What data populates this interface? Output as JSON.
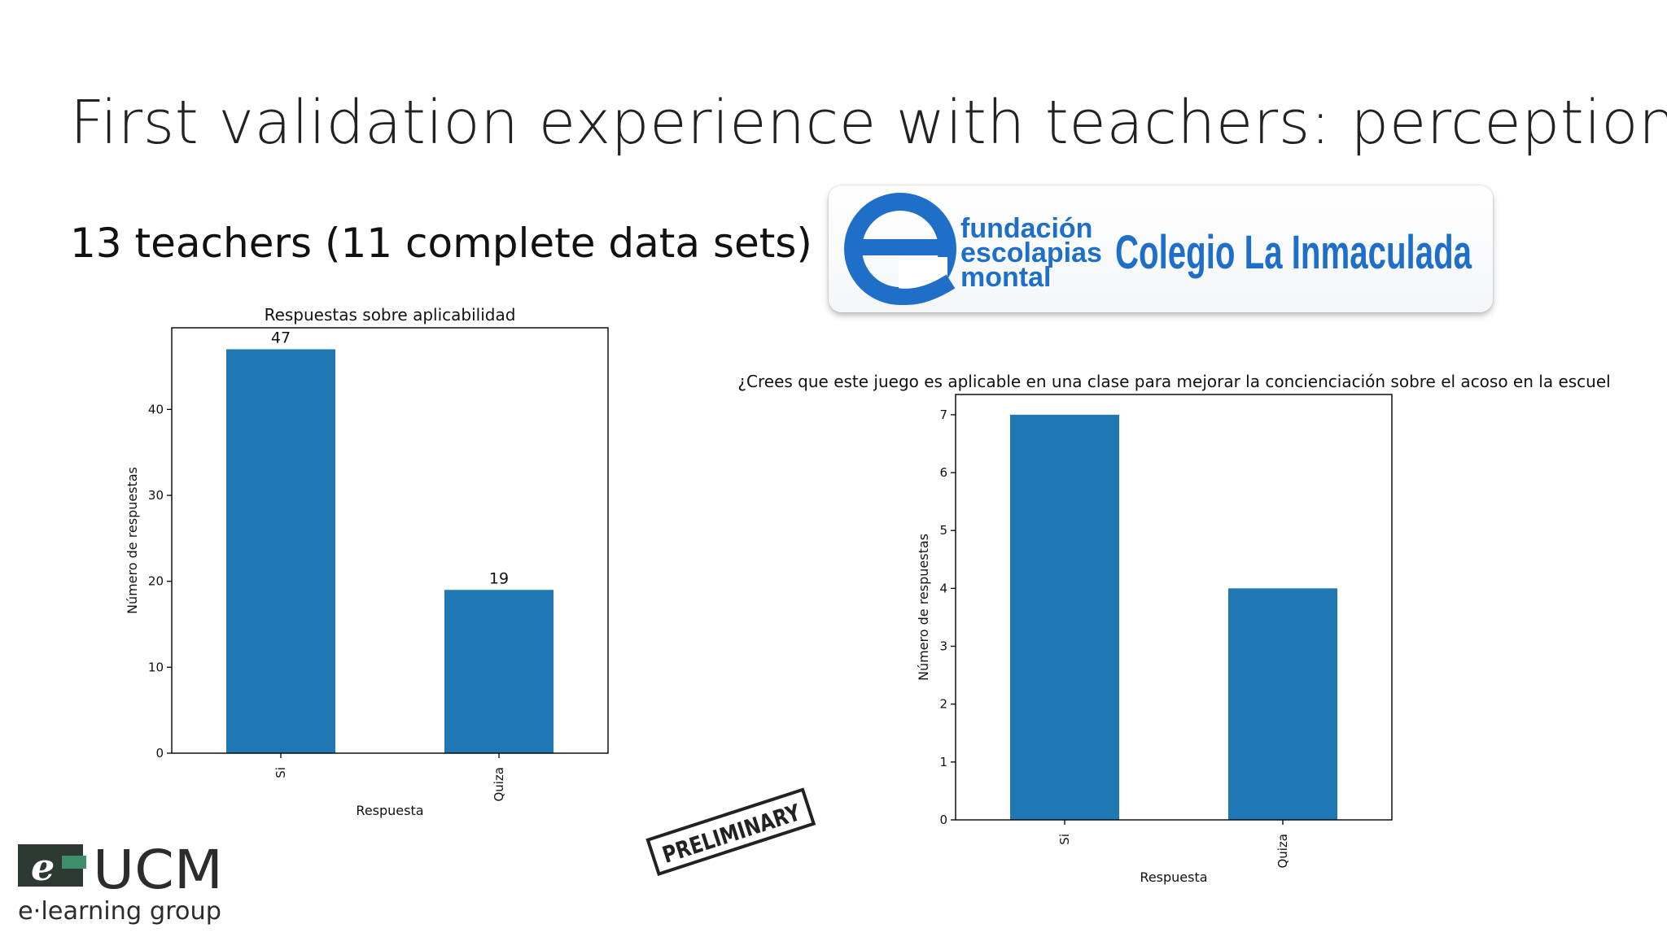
{
  "slide": {
    "title": "First validation experience with teachers: perception",
    "subtitle": "13 teachers (11 complete data sets)"
  },
  "logos": {
    "fundacion": {
      "mark_icon": "e-swoosh-icon",
      "line1": "fundación",
      "line2": "escolapias",
      "line3": "montal",
      "school": "Colegio La Inmaculada",
      "color": "#1f6fc8"
    },
    "ucm": {
      "mark": "e",
      "name": "UCM",
      "tagline": "e·learning group",
      "color": "#2c2c2c",
      "accent": "#3e8e6a"
    },
    "stamp": {
      "text": "PRELIMINARY"
    }
  },
  "colors": {
    "bar": "#1f77b4",
    "axis": "#000000"
  },
  "chart_data": [
    {
      "type": "bar",
      "title": "Respuestas sobre aplicabilidad",
      "xlabel": "Respuesta",
      "ylabel": "Número de respuestas",
      "categories": [
        "Si",
        "Quiza"
      ],
      "values": [
        47,
        19
      ],
      "data_labels": [
        "47",
        "19"
      ],
      "ylim": [
        0,
        49.5
      ],
      "yticks": [
        0,
        10,
        20,
        30,
        40
      ],
      "grid": false,
      "legend": "none"
    },
    {
      "type": "bar",
      "title": "¿Crees que este juego es aplicable en una clase para mejorar la concienciación sobre el acoso en la escuela?",
      "xlabel": "Respuesta",
      "ylabel": "Número de respuestas",
      "categories": [
        "Si",
        "Quiza"
      ],
      "values": [
        7,
        4
      ],
      "data_labels": [],
      "ylim": [
        0,
        7.35
      ],
      "yticks": [
        0,
        1,
        2,
        3,
        4,
        5,
        6,
        7
      ],
      "grid": false,
      "legend": "none"
    }
  ]
}
